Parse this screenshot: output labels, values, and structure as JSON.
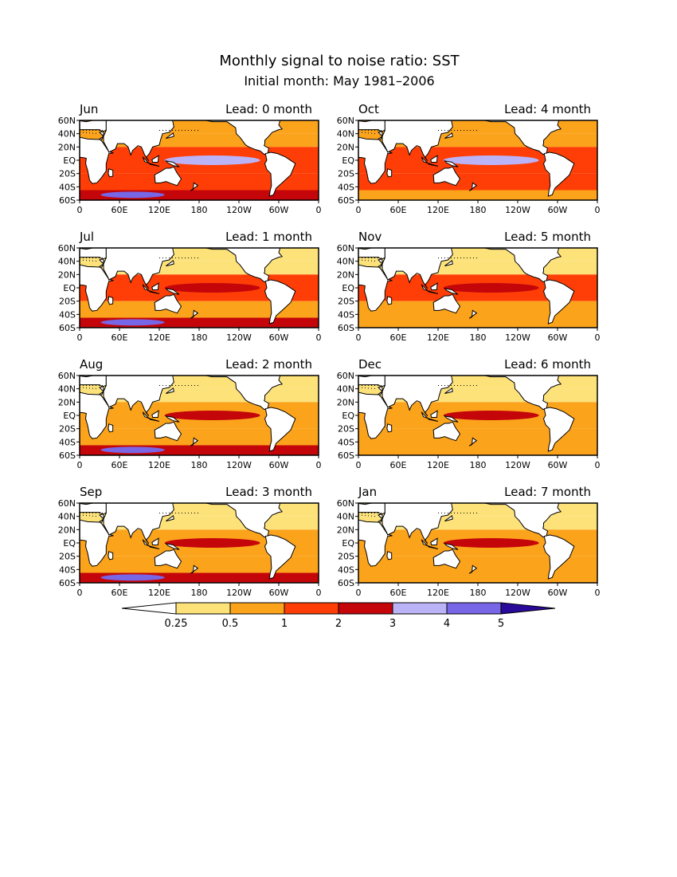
{
  "title": "Monthly signal to noise ratio: SST",
  "subtitle": "Initial month: May 1981–2006",
  "lon_ticks": [
    "0",
    "60E",
    "120E",
    "180",
    "120W",
    "60W",
    "0"
  ],
  "lat_ticks": [
    "60N",
    "40N",
    "20N",
    "EQ",
    "20S",
    "40S",
    "60S"
  ],
  "panels": [
    {
      "month": "Jun",
      "lead": "Lead: 0 month"
    },
    {
      "month": "Oct",
      "lead": "Lead: 4 month"
    },
    {
      "month": "Jul",
      "lead": "Lead: 1 month"
    },
    {
      "month": "Nov",
      "lead": "Lead: 5 month"
    },
    {
      "month": "Aug",
      "lead": "Lead: 2 month"
    },
    {
      "month": "Dec",
      "lead": "Lead: 6 month"
    },
    {
      "month": "Sep",
      "lead": "Lead: 3 month"
    },
    {
      "month": "Jan",
      "lead": "Lead: 7 month"
    }
  ],
  "colorbar": {
    "labels": [
      "0.25",
      "0.5",
      "1",
      "2",
      "3",
      "4",
      "5"
    ],
    "colors": [
      "#ffffff",
      "#fde27a",
      "#fca31c",
      "#fe3e06",
      "#c4060a",
      "#bbb3f7",
      "#7766e6",
      "#2a0a9a"
    ]
  },
  "land_color": "#ffffff",
  "coast_color": "#000000"
}
